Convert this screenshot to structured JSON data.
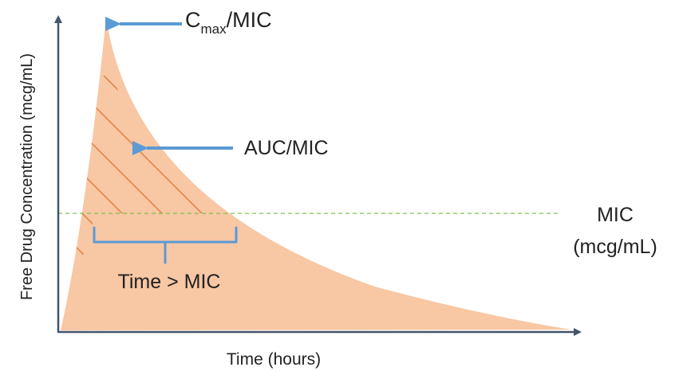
{
  "diagram": {
    "y_axis_label": "Free Drug Concentration (mcg/mL)",
    "x_axis_label": "Time (hours)",
    "cmax_main": "C",
    "cmax_sub": "max",
    "cmax_suffix": "/MIC",
    "auc_label": "AUC/MIC",
    "mic_label_line1": "MIC",
    "mic_label_line2": "(mcg/mL)",
    "time_above_mic_label": "Time > MIC",
    "colors": {
      "curve_fill": "#f8c7a4",
      "hatch": "#e0864a",
      "arrow": "#5b9bd5",
      "bracket": "#5b9bd5",
      "mic_line": "#7cc04e",
      "axis": "#44546a"
    }
  }
}
